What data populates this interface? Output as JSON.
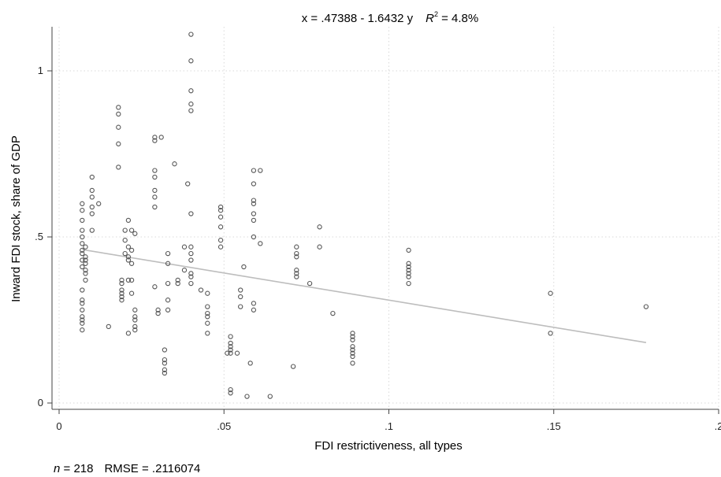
{
  "chart_data": {
    "type": "scatter",
    "title_parts": {
      "lhs": "x = .47388 - 1.6432 y",
      "r_sym": "R",
      "r_sup": "2",
      "r_value": " = 4.8%"
    },
    "xlabel": "FDI restrictiveness, all types",
    "ylabel": "Inward FDI stock, share of GDP",
    "xlim": [
      0,
      0.2
    ],
    "ylim": [
      0,
      1.1
    ],
    "x_ticks": [
      {
        "value": 0,
        "label": "0"
      },
      {
        "value": 0.05,
        "label": ".05"
      },
      {
        "value": 0.1,
        "label": ".1"
      },
      {
        "value": 0.15,
        "label": ".15"
      },
      {
        "value": 0.2,
        "label": ".2"
      }
    ],
    "y_ticks": [
      {
        "value": 0,
        "label": "0"
      },
      {
        "value": 0.5,
        "label": ".5"
      },
      {
        "value": 1,
        "label": "1"
      }
    ],
    "grid": true,
    "fit_line": {
      "x": [
        0.007,
        0.178
      ],
      "y": [
        0.462,
        0.182
      ]
    },
    "footnote": {
      "n_sym": "n",
      "n_text": " = 218",
      "rmse": "RMSE =  .2116074"
    },
    "points": [
      [
        0.007,
        0.6
      ],
      [
        0.007,
        0.58
      ],
      [
        0.007,
        0.55
      ],
      [
        0.007,
        0.52
      ],
      [
        0.007,
        0.5
      ],
      [
        0.007,
        0.48
      ],
      [
        0.007,
        0.46
      ],
      [
        0.007,
        0.45
      ],
      [
        0.007,
        0.43
      ],
      [
        0.007,
        0.41
      ],
      [
        0.007,
        0.34
      ],
      [
        0.007,
        0.31
      ],
      [
        0.007,
        0.3
      ],
      [
        0.007,
        0.28
      ],
      [
        0.007,
        0.26
      ],
      [
        0.007,
        0.25
      ],
      [
        0.007,
        0.24
      ],
      [
        0.007,
        0.22
      ],
      [
        0.008,
        0.47
      ],
      [
        0.008,
        0.44
      ],
      [
        0.008,
        0.43
      ],
      [
        0.008,
        0.42
      ],
      [
        0.008,
        0.4
      ],
      [
        0.008,
        0.39
      ],
      [
        0.008,
        0.37
      ],
      [
        0.01,
        0.68
      ],
      [
        0.01,
        0.64
      ],
      [
        0.01,
        0.62
      ],
      [
        0.01,
        0.59
      ],
      [
        0.01,
        0.57
      ],
      [
        0.01,
        0.52
      ],
      [
        0.012,
        0.6
      ],
      [
        0.015,
        0.23
      ],
      [
        0.018,
        0.89
      ],
      [
        0.018,
        0.87
      ],
      [
        0.018,
        0.83
      ],
      [
        0.018,
        0.78
      ],
      [
        0.018,
        0.71
      ],
      [
        0.019,
        0.37
      ],
      [
        0.019,
        0.36
      ],
      [
        0.019,
        0.34
      ],
      [
        0.019,
        0.33
      ],
      [
        0.019,
        0.32
      ],
      [
        0.019,
        0.31
      ],
      [
        0.02,
        0.52
      ],
      [
        0.02,
        0.49
      ],
      [
        0.02,
        0.45
      ],
      [
        0.021,
        0.55
      ],
      [
        0.021,
        0.47
      ],
      [
        0.021,
        0.44
      ],
      [
        0.021,
        0.43
      ],
      [
        0.021,
        0.37
      ],
      [
        0.021,
        0.21
      ],
      [
        0.022,
        0.52
      ],
      [
        0.022,
        0.46
      ],
      [
        0.022,
        0.42
      ],
      [
        0.022,
        0.37
      ],
      [
        0.022,
        0.33
      ],
      [
        0.023,
        0.51
      ],
      [
        0.023,
        0.28
      ],
      [
        0.023,
        0.26
      ],
      [
        0.023,
        0.25
      ],
      [
        0.023,
        0.23
      ],
      [
        0.023,
        0.22
      ],
      [
        0.029,
        0.8
      ],
      [
        0.029,
        0.79
      ],
      [
        0.029,
        0.7
      ],
      [
        0.029,
        0.68
      ],
      [
        0.029,
        0.64
      ],
      [
        0.029,
        0.62
      ],
      [
        0.029,
        0.59
      ],
      [
        0.029,
        0.35
      ],
      [
        0.03,
        0.28
      ],
      [
        0.03,
        0.27
      ],
      [
        0.031,
        0.8
      ],
      [
        0.032,
        0.16
      ],
      [
        0.032,
        0.13
      ],
      [
        0.032,
        0.12
      ],
      [
        0.032,
        0.1
      ],
      [
        0.032,
        0.09
      ],
      [
        0.033,
        0.45
      ],
      [
        0.033,
        0.42
      ],
      [
        0.033,
        0.36
      ],
      [
        0.033,
        0.31
      ],
      [
        0.033,
        0.28
      ],
      [
        0.035,
        0.72
      ],
      [
        0.036,
        0.37
      ],
      [
        0.036,
        0.36
      ],
      [
        0.038,
        0.47
      ],
      [
        0.038,
        0.4
      ],
      [
        0.039,
        0.66
      ],
      [
        0.04,
        1.11
      ],
      [
        0.04,
        1.03
      ],
      [
        0.04,
        0.94
      ],
      [
        0.04,
        0.9
      ],
      [
        0.04,
        0.88
      ],
      [
        0.04,
        0.57
      ],
      [
        0.04,
        0.47
      ],
      [
        0.04,
        0.45
      ],
      [
        0.04,
        0.43
      ],
      [
        0.04,
        0.39
      ],
      [
        0.04,
        0.38
      ],
      [
        0.04,
        0.36
      ],
      [
        0.043,
        0.34
      ],
      [
        0.045,
        0.33
      ],
      [
        0.045,
        0.29
      ],
      [
        0.045,
        0.27
      ],
      [
        0.045,
        0.26
      ],
      [
        0.045,
        0.24
      ],
      [
        0.045,
        0.21
      ],
      [
        0.049,
        0.59
      ],
      [
        0.049,
        0.58
      ],
      [
        0.049,
        0.56
      ],
      [
        0.049,
        0.53
      ],
      [
        0.049,
        0.49
      ],
      [
        0.049,
        0.47
      ],
      [
        0.051,
        0.15
      ],
      [
        0.052,
        0.2
      ],
      [
        0.052,
        0.18
      ],
      [
        0.052,
        0.17
      ],
      [
        0.052,
        0.16
      ],
      [
        0.052,
        0.15
      ],
      [
        0.052,
        0.04
      ],
      [
        0.052,
        0.03
      ],
      [
        0.054,
        0.15
      ],
      [
        0.055,
        0.34
      ],
      [
        0.055,
        0.32
      ],
      [
        0.055,
        0.29
      ],
      [
        0.056,
        0.41
      ],
      [
        0.057,
        0.02
      ],
      [
        0.058,
        0.12
      ],
      [
        0.059,
        0.7
      ],
      [
        0.059,
        0.66
      ],
      [
        0.059,
        0.61
      ],
      [
        0.059,
        0.6
      ],
      [
        0.059,
        0.57
      ],
      [
        0.059,
        0.55
      ],
      [
        0.059,
        0.5
      ],
      [
        0.059,
        0.3
      ],
      [
        0.059,
        0.28
      ],
      [
        0.061,
        0.7
      ],
      [
        0.061,
        0.48
      ],
      [
        0.064,
        0.02
      ],
      [
        0.071,
        0.11
      ],
      [
        0.072,
        0.47
      ],
      [
        0.072,
        0.45
      ],
      [
        0.072,
        0.44
      ],
      [
        0.072,
        0.4
      ],
      [
        0.072,
        0.39
      ],
      [
        0.072,
        0.38
      ],
      [
        0.076,
        0.36
      ],
      [
        0.079,
        0.53
      ],
      [
        0.079,
        0.47
      ],
      [
        0.083,
        0.27
      ],
      [
        0.089,
        0.21
      ],
      [
        0.089,
        0.2
      ],
      [
        0.089,
        0.19
      ],
      [
        0.089,
        0.17
      ],
      [
        0.089,
        0.16
      ],
      [
        0.089,
        0.15
      ],
      [
        0.089,
        0.14
      ],
      [
        0.089,
        0.12
      ],
      [
        0.106,
        0.46
      ],
      [
        0.106,
        0.42
      ],
      [
        0.106,
        0.41
      ],
      [
        0.106,
        0.4
      ],
      [
        0.106,
        0.39
      ],
      [
        0.106,
        0.38
      ],
      [
        0.106,
        0.36
      ],
      [
        0.149,
        0.33
      ],
      [
        0.149,
        0.21
      ],
      [
        0.178,
        0.29
      ]
    ]
  }
}
